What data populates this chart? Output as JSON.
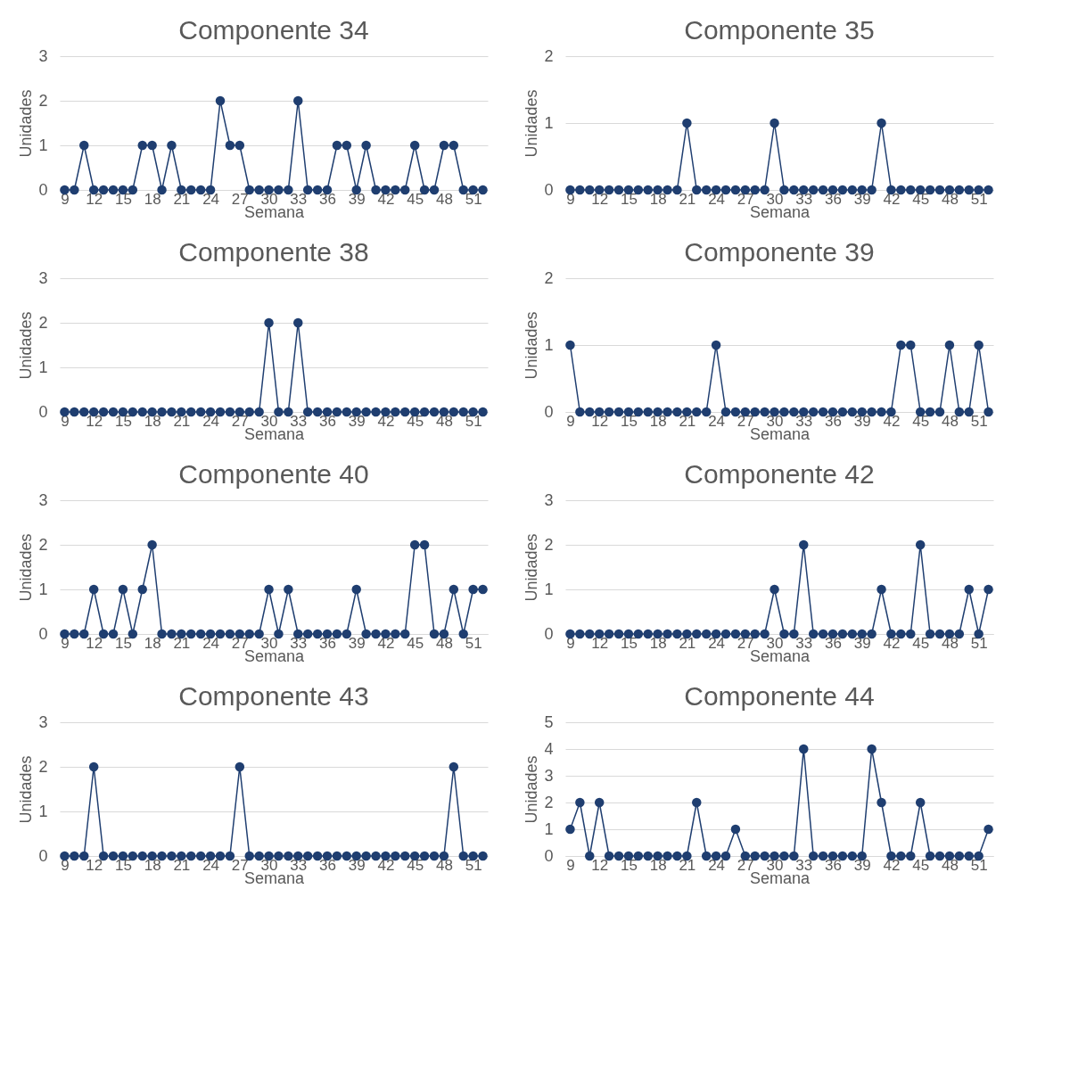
{
  "chart_data": [
    {
      "type": "line",
      "title": "Componente 34",
      "xlabel": "Semana",
      "ylabel": "Unidades",
      "x": [
        9,
        10,
        11,
        12,
        13,
        14,
        15,
        16,
        17,
        18,
        19,
        20,
        21,
        22,
        23,
        24,
        25,
        26,
        27,
        28,
        29,
        30,
        31,
        32,
        33,
        34,
        35,
        36,
        37,
        38,
        39,
        40,
        41,
        42,
        43,
        44,
        45,
        46,
        47,
        48,
        49,
        50,
        51,
        52
      ],
      "xlim": [
        8.5,
        52.5
      ],
      "xticks": [
        9,
        12,
        15,
        18,
        21,
        24,
        27,
        30,
        33,
        36,
        39,
        42,
        45,
        48,
        51
      ],
      "ylim": [
        0,
        3
      ],
      "yticks": [
        0,
        1,
        2,
        3
      ],
      "grid": "y",
      "legend": false,
      "marker": "circle",
      "line_style": "solid",
      "series": [
        {
          "color": "#1f3e70",
          "values": [
            0,
            0,
            1,
            0,
            0,
            0,
            0,
            0,
            1,
            1,
            0,
            1,
            0,
            0,
            0,
            0,
            2,
            1,
            1,
            0,
            0,
            0,
            0,
            0,
            2,
            0,
            0,
            0,
            1,
            1,
            0,
            1,
            0,
            0,
            0,
            0,
            1,
            0,
            0,
            1,
            1,
            0,
            0,
            0
          ]
        }
      ]
    },
    {
      "type": "line",
      "title": "Componente 35",
      "xlabel": "Semana",
      "ylabel": "Unidades",
      "x": [
        9,
        10,
        11,
        12,
        13,
        14,
        15,
        16,
        17,
        18,
        19,
        20,
        21,
        22,
        23,
        24,
        25,
        26,
        27,
        28,
        29,
        30,
        31,
        32,
        33,
        34,
        35,
        36,
        37,
        38,
        39,
        40,
        41,
        42,
        43,
        44,
        45,
        46,
        47,
        48,
        49,
        50,
        51,
        52
      ],
      "xlim": [
        8.5,
        52.5
      ],
      "xticks": [
        9,
        12,
        15,
        18,
        21,
        24,
        27,
        30,
        33,
        36,
        39,
        42,
        45,
        48,
        51
      ],
      "ylim": [
        0,
        2
      ],
      "yticks": [
        0,
        1,
        2
      ],
      "grid": "y",
      "legend": false,
      "marker": "circle",
      "line_style": "solid",
      "series": [
        {
          "color": "#1f3e70",
          "values": [
            0,
            0,
            0,
            0,
            0,
            0,
            0,
            0,
            0,
            0,
            0,
            0,
            1,
            0,
            0,
            0,
            0,
            0,
            0,
            0,
            0,
            1,
            0,
            0,
            0,
            0,
            0,
            0,
            0,
            0,
            0,
            0,
            1,
            0,
            0,
            0,
            0,
            0,
            0,
            0,
            0,
            0,
            0,
            0
          ]
        }
      ]
    },
    {
      "type": "line",
      "title": "Componente 38",
      "xlabel": "Semana",
      "ylabel": "Unidades",
      "x": [
        9,
        10,
        11,
        12,
        13,
        14,
        15,
        16,
        17,
        18,
        19,
        20,
        21,
        22,
        23,
        24,
        25,
        26,
        27,
        28,
        29,
        30,
        31,
        32,
        33,
        34,
        35,
        36,
        37,
        38,
        39,
        40,
        41,
        42,
        43,
        44,
        45,
        46,
        47,
        48,
        49,
        50,
        51,
        52
      ],
      "xlim": [
        8.5,
        52.5
      ],
      "xticks": [
        9,
        12,
        15,
        18,
        21,
        24,
        27,
        30,
        33,
        36,
        39,
        42,
        45,
        48,
        51
      ],
      "ylim": [
        0,
        3
      ],
      "yticks": [
        0,
        1,
        2,
        3
      ],
      "grid": "y",
      "legend": false,
      "marker": "circle",
      "line_style": "solid",
      "series": [
        {
          "color": "#1f3e70",
          "values": [
            0,
            0,
            0,
            0,
            0,
            0,
            0,
            0,
            0,
            0,
            0,
            0,
            0,
            0,
            0,
            0,
            0,
            0,
            0,
            0,
            0,
            2,
            0,
            0,
            2,
            0,
            0,
            0,
            0,
            0,
            0,
            0,
            0,
            0,
            0,
            0,
            0,
            0,
            0,
            0,
            0,
            0,
            0,
            0
          ]
        }
      ]
    },
    {
      "type": "line",
      "title": "Componente 39",
      "xlabel": "Semana",
      "ylabel": "Unidades",
      "x": [
        9,
        10,
        11,
        12,
        13,
        14,
        15,
        16,
        17,
        18,
        19,
        20,
        21,
        22,
        23,
        24,
        25,
        26,
        27,
        28,
        29,
        30,
        31,
        32,
        33,
        34,
        35,
        36,
        37,
        38,
        39,
        40,
        41,
        42,
        43,
        44,
        45,
        46,
        47,
        48,
        49,
        50,
        51,
        52
      ],
      "xlim": [
        8.5,
        52.5
      ],
      "xticks": [
        9,
        12,
        15,
        18,
        21,
        24,
        27,
        30,
        33,
        36,
        39,
        42,
        45,
        48,
        51
      ],
      "ylim": [
        0,
        2
      ],
      "yticks": [
        0,
        1,
        2
      ],
      "grid": "y",
      "legend": false,
      "marker": "circle",
      "line_style": "solid",
      "series": [
        {
          "color": "#1f3e70",
          "values": [
            1,
            0,
            0,
            0,
            0,
            0,
            0,
            0,
            0,
            0,
            0,
            0,
            0,
            0,
            0,
            1,
            0,
            0,
            0,
            0,
            0,
            0,
            0,
            0,
            0,
            0,
            0,
            0,
            0,
            0,
            0,
            0,
            0,
            0,
            1,
            1,
            0,
            0,
            0,
            1,
            0,
            0,
            1,
            0
          ]
        }
      ]
    },
    {
      "type": "line",
      "title": "Componente 40",
      "xlabel": "Semana",
      "ylabel": "Unidades",
      "x": [
        9,
        10,
        11,
        12,
        13,
        14,
        15,
        16,
        17,
        18,
        19,
        20,
        21,
        22,
        23,
        24,
        25,
        26,
        27,
        28,
        29,
        30,
        31,
        32,
        33,
        34,
        35,
        36,
        37,
        38,
        39,
        40,
        41,
        42,
        43,
        44,
        45,
        46,
        47,
        48,
        49,
        50,
        51,
        52
      ],
      "xlim": [
        8.5,
        52.5
      ],
      "xticks": [
        9,
        12,
        15,
        18,
        21,
        24,
        27,
        30,
        33,
        36,
        39,
        42,
        45,
        48,
        51
      ],
      "ylim": [
        0,
        3
      ],
      "yticks": [
        0,
        1,
        2,
        3
      ],
      "grid": "y",
      "legend": false,
      "marker": "circle",
      "line_style": "solid",
      "series": [
        {
          "color": "#1f3e70",
          "values": [
            0,
            0,
            0,
            1,
            0,
            0,
            1,
            0,
            1,
            2,
            0,
            0,
            0,
            0,
            0,
            0,
            0,
            0,
            0,
            0,
            0,
            1,
            0,
            1,
            0,
            0,
            0,
            0,
            0,
            0,
            1,
            0,
            0,
            0,
            0,
            0,
            2,
            2,
            0,
            0,
            1,
            0,
            1,
            1
          ]
        }
      ]
    },
    {
      "type": "line",
      "title": "Componente 42",
      "xlabel": "Semana",
      "ylabel": "Unidades",
      "x": [
        9,
        10,
        11,
        12,
        13,
        14,
        15,
        16,
        17,
        18,
        19,
        20,
        21,
        22,
        23,
        24,
        25,
        26,
        27,
        28,
        29,
        30,
        31,
        32,
        33,
        34,
        35,
        36,
        37,
        38,
        39,
        40,
        41,
        42,
        43,
        44,
        45,
        46,
        47,
        48,
        49,
        50,
        51,
        52
      ],
      "xlim": [
        8.5,
        52.5
      ],
      "xticks": [
        9,
        12,
        15,
        18,
        21,
        24,
        27,
        30,
        33,
        36,
        39,
        42,
        45,
        48,
        51
      ],
      "ylim": [
        0,
        3
      ],
      "yticks": [
        0,
        1,
        2,
        3
      ],
      "grid": "y",
      "legend": false,
      "marker": "circle",
      "line_style": "solid",
      "series": [
        {
          "color": "#1f3e70",
          "values": [
            0,
            0,
            0,
            0,
            0,
            0,
            0,
            0,
            0,
            0,
            0,
            0,
            0,
            0,
            0,
            0,
            0,
            0,
            0,
            0,
            0,
            1,
            0,
            0,
            2,
            0,
            0,
            0,
            0,
            0,
            0,
            0,
            1,
            0,
            0,
            0,
            2,
            0,
            0,
            0,
            0,
            1,
            0,
            1
          ]
        }
      ]
    },
    {
      "type": "line",
      "title": "Componente 43",
      "xlabel": "Semana",
      "ylabel": "Unidades",
      "x": [
        9,
        10,
        11,
        12,
        13,
        14,
        15,
        16,
        17,
        18,
        19,
        20,
        21,
        22,
        23,
        24,
        25,
        26,
        27,
        28,
        29,
        30,
        31,
        32,
        33,
        34,
        35,
        36,
        37,
        38,
        39,
        40,
        41,
        42,
        43,
        44,
        45,
        46,
        47,
        48,
        49,
        50,
        51,
        52
      ],
      "xlim": [
        8.5,
        52.5
      ],
      "xticks": [
        9,
        12,
        15,
        18,
        21,
        24,
        27,
        30,
        33,
        36,
        39,
        42,
        45,
        48,
        51
      ],
      "ylim": [
        0,
        3
      ],
      "yticks": [
        0,
        1,
        2,
        3
      ],
      "grid": "y",
      "legend": false,
      "marker": "circle",
      "line_style": "solid",
      "series": [
        {
          "color": "#1f3e70",
          "values": [
            0,
            0,
            0,
            2,
            0,
            0,
            0,
            0,
            0,
            0,
            0,
            0,
            0,
            0,
            0,
            0,
            0,
            0,
            2,
            0,
            0,
            0,
            0,
            0,
            0,
            0,
            0,
            0,
            0,
            0,
            0,
            0,
            0,
            0,
            0,
            0,
            0,
            0,
            0,
            0,
            2,
            0,
            0,
            0
          ]
        }
      ]
    },
    {
      "type": "line",
      "title": "Componente 44",
      "xlabel": "Semana",
      "ylabel": "Unidades",
      "x": [
        9,
        10,
        11,
        12,
        13,
        14,
        15,
        16,
        17,
        18,
        19,
        20,
        21,
        22,
        23,
        24,
        25,
        26,
        27,
        28,
        29,
        30,
        31,
        32,
        33,
        34,
        35,
        36,
        37,
        38,
        39,
        40,
        41,
        42,
        43,
        44,
        45,
        46,
        47,
        48,
        49,
        50,
        51,
        52
      ],
      "xlim": [
        8.5,
        52.5
      ],
      "xticks": [
        9,
        12,
        15,
        18,
        21,
        24,
        27,
        30,
        33,
        36,
        39,
        42,
        45,
        48,
        51
      ],
      "ylim": [
        0,
        5
      ],
      "yticks": [
        0,
        1,
        2,
        3,
        4,
        5
      ],
      "grid": "y",
      "legend": false,
      "marker": "circle",
      "line_style": "solid",
      "series": [
        {
          "color": "#1f3e70",
          "values": [
            1,
            2,
            0,
            2,
            0,
            0,
            0,
            0,
            0,
            0,
            0,
            0,
            0,
            2,
            0,
            0,
            0,
            1,
            0,
            0,
            0,
            0,
            0,
            0,
            4,
            0,
            0,
            0,
            0,
            0,
            0,
            4,
            2,
            0,
            0,
            0,
            2,
            0,
            0,
            0,
            0,
            0,
            0,
            1
          ]
        }
      ]
    }
  ]
}
